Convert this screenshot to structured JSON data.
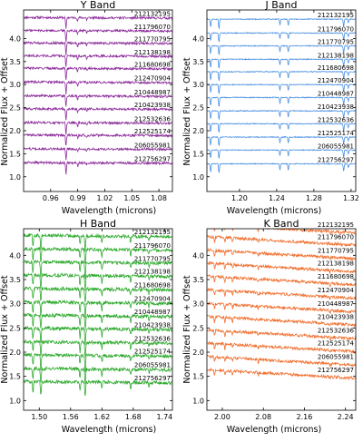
{
  "figure": {
    "ylabel": "Normalized Flux + Offset",
    "xlabel": "Wavelength (microns)"
  },
  "star_ids": [
    "212132195",
    "211796070",
    "211770795",
    "212138198",
    "211680698",
    "212470904",
    "210448987",
    "210423938",
    "212532636",
    "212525174",
    "206055981",
    "212756297"
  ],
  "chart_data": [
    {
      "type": "line",
      "title": "Y Band",
      "color": "#8b2a9a",
      "xlabel": "Wavelength (microns)",
      "ylabel": "Normalized Flux + Offset",
      "xlim": [
        0.93,
        1.095
      ],
      "ylim": [
        0.68,
        4.62
      ],
      "xticks": [
        "0.96",
        "0.99",
        "1.02",
        "1.05",
        "1.08"
      ],
      "yticks": [
        "1.0",
        "1.5",
        "2.0",
        "2.5",
        "3.0",
        "3.5",
        "4.0"
      ],
      "offsets": [
        4.45,
        4.17,
        3.9,
        3.62,
        3.35,
        3.05,
        2.75,
        2.47,
        2.17,
        1.9,
        1.6,
        1.3
      ],
      "series_labels": [
        "212132195",
        "211796070",
        "211770795",
        "212138198",
        "211680698",
        "212470904",
        "210448987",
        "210423938",
        "212532636",
        "212525174",
        "206055981",
        "212756297"
      ],
      "features": [
        {
          "x": 0.977,
          "d": 0.25
        },
        {
          "x": 0.99,
          "d": 0.07
        },
        {
          "x": 1.0,
          "d": 0.05
        }
      ],
      "noise": 0.025,
      "slope": -0.05
    },
    {
      "type": "line",
      "title": "J Band",
      "color": "#4a90e2",
      "xlabel": "Wavelength (microns)",
      "ylabel": "Normalized Flux + Offset",
      "xlim": [
        1.165,
        1.325
      ],
      "ylim": [
        0.68,
        4.62
      ],
      "xticks": [
        "1.20",
        "1.24",
        "1.28",
        "1.32"
      ],
      "yticks": [
        "1.0",
        "1.5",
        "2.0",
        "2.5",
        "3.0",
        "3.5",
        "4.0"
      ],
      "offsets": [
        4.42,
        4.12,
        3.84,
        3.55,
        3.28,
        3.0,
        2.72,
        2.43,
        2.15,
        1.86,
        1.58,
        1.28
      ],
      "series_labels": [
        "212132195",
        "211796070",
        "211770795",
        "212138198",
        "211680698",
        "212470904",
        "210448987",
        "210423938",
        "212532636",
        "212525174",
        "206055981",
        "212756297"
      ],
      "features": [
        {
          "x": 1.169,
          "d": 0.18
        },
        {
          "x": 1.178,
          "d": 0.2
        },
        {
          "x": 1.2435,
          "d": 0.13
        },
        {
          "x": 1.2525,
          "d": 0.13
        },
        {
          "x": 1.312,
          "d": 0.16
        },
        {
          "x": 1.317,
          "d": 0.08
        }
      ],
      "noise": 0.01,
      "slope": 0.0
    },
    {
      "type": "line",
      "title": "H Band",
      "color": "#2eaa2e",
      "xlabel": "Wavelength (microns)",
      "ylabel": "Normalized Flux + Offset",
      "xlim": [
        1.47,
        1.755
      ],
      "ylim": [
        0.8,
        4.55
      ],
      "xticks": [
        "1.50",
        "1.56",
        "1.62",
        "1.68",
        "1.74"
      ],
      "yticks": [
        "1.0",
        "1.5",
        "2.0",
        "2.5",
        "3.0",
        "3.5",
        "4.0"
      ],
      "offsets": [
        4.4,
        4.12,
        3.85,
        3.58,
        3.3,
        3.02,
        2.75,
        2.48,
        2.2,
        1.93,
        1.65,
        1.38
      ],
      "series_labels": [
        "212132195",
        "211796070",
        "211770795",
        "212138198",
        "211680698",
        "212470904",
        "210448987",
        "210423938",
        "212532636",
        "212525174",
        "206055981",
        "212756297"
      ],
      "features": [
        {
          "x": 1.488,
          "d": 0.22
        },
        {
          "x": 1.503,
          "d": 0.3
        },
        {
          "x": 1.578,
          "d": 0.2
        },
        {
          "x": 1.588,
          "d": 0.32
        },
        {
          "x": 1.62,
          "d": 0.15
        },
        {
          "x": 1.675,
          "d": 0.12
        },
        {
          "x": 1.71,
          "d": 0.08
        }
      ],
      "noise": 0.035,
      "slope": -0.1
    },
    {
      "type": "line",
      "title": "K Band",
      "color": "#f07030",
      "xlabel": "Wavelength (microns)",
      "ylabel": "Normalized Flux + Offset",
      "xlim": [
        1.97,
        2.26
      ],
      "ylim": [
        0.8,
        4.55
      ],
      "xticks": [
        "2.00",
        "2.08",
        "2.16",
        "2.24"
      ],
      "yticks": [
        "1.0",
        "1.5",
        "2.0",
        "2.5",
        "3.0",
        "3.5",
        "4.0"
      ],
      "offsets": [
        4.55,
        4.3,
        4.02,
        3.75,
        3.48,
        3.2,
        2.92,
        2.65,
        2.37,
        2.1,
        1.82,
        1.55
      ],
      "series_labels": [
        "212132195",
        "211796070",
        "211770795",
        "212138198",
        "211680698",
        "212470904",
        "210448987",
        "210423938",
        "212532636",
        "212525174",
        "206055981",
        "212756297"
      ],
      "features": [
        {
          "x": 1.985,
          "d": 0.12
        },
        {
          "x": 2.005,
          "d": 0.1
        },
        {
          "x": 2.02,
          "d": 0.08
        },
        {
          "x": 2.07,
          "d": 0.06
        },
        {
          "x": 2.21,
          "d": 0.05
        }
      ],
      "noise": 0.03,
      "slope": -0.6
    }
  ]
}
